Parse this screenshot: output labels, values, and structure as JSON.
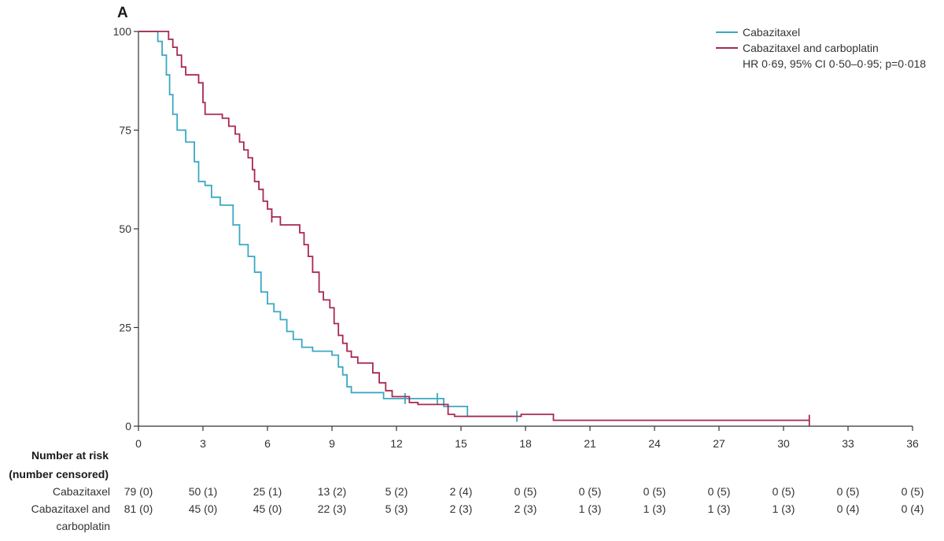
{
  "chart_data": {
    "type": "line",
    "subtype": "kaplan-meier",
    "title": "A",
    "xlabel": "",
    "ylabel": "",
    "xlim": [
      0,
      36
    ],
    "ylim": [
      0,
      100
    ],
    "x_ticks": [
      0,
      3,
      6,
      9,
      12,
      15,
      18,
      21,
      24,
      27,
      30,
      33,
      36
    ],
    "y_ticks": [
      0,
      25,
      50,
      75,
      100
    ],
    "grid": false,
    "legend_position": "top-right",
    "annotation": "HR 0·69, 95% CI 0·50–0·95; p=0·018",
    "series": [
      {
        "name": "Cabazitaxel",
        "color": "#3aa8c4",
        "points": [
          [
            0,
            100
          ],
          [
            0.1,
            100
          ],
          [
            0.9,
            97.5
          ],
          [
            1.1,
            94
          ],
          [
            1.3,
            89
          ],
          [
            1.45,
            84
          ],
          [
            1.6,
            79
          ],
          [
            1.8,
            75
          ],
          [
            2.2,
            72
          ],
          [
            2.6,
            67
          ],
          [
            2.8,
            62
          ],
          [
            3.1,
            61
          ],
          [
            3.4,
            58
          ],
          [
            3.8,
            56
          ],
          [
            4.1,
            56
          ],
          [
            4.4,
            51
          ],
          [
            4.7,
            46
          ],
          [
            5.1,
            43
          ],
          [
            5.4,
            39
          ],
          [
            5.7,
            34
          ],
          [
            6.0,
            31
          ],
          [
            6.3,
            29
          ],
          [
            6.6,
            27
          ],
          [
            6.9,
            24
          ],
          [
            7.2,
            22
          ],
          [
            7.6,
            20
          ],
          [
            8.1,
            19
          ],
          [
            8.5,
            19
          ],
          [
            9.0,
            18
          ],
          [
            9.3,
            15
          ],
          [
            9.5,
            13
          ],
          [
            9.7,
            10
          ],
          [
            9.9,
            8.5
          ],
          [
            10.8,
            8.5
          ],
          [
            11.4,
            7
          ],
          [
            12.4,
            7
          ],
          [
            13.9,
            7
          ],
          [
            14.2,
            5
          ],
          [
            15.3,
            2.5
          ],
          [
            16.6,
            2.5
          ],
          [
            17.6,
            2.5
          ]
        ],
        "censored": [
          [
            12.4,
            7
          ],
          [
            13.9,
            7
          ],
          [
            17.6,
            2.5
          ]
        ]
      },
      {
        "name": "Cabazitaxel and carboplatin",
        "color": "#a8284e",
        "points": [
          [
            0,
            100
          ],
          [
            1.1,
            100
          ],
          [
            1.4,
            98
          ],
          [
            1.6,
            96
          ],
          [
            1.8,
            94
          ],
          [
            2.0,
            91
          ],
          [
            2.2,
            89
          ],
          [
            2.7,
            89
          ],
          [
            2.8,
            87
          ],
          [
            3.0,
            82
          ],
          [
            3.1,
            79
          ],
          [
            3.6,
            79
          ],
          [
            3.9,
            78
          ],
          [
            4.2,
            76
          ],
          [
            4.5,
            74
          ],
          [
            4.7,
            72
          ],
          [
            4.9,
            70
          ],
          [
            5.1,
            68
          ],
          [
            5.3,
            65
          ],
          [
            5.4,
            62
          ],
          [
            5.6,
            60
          ],
          [
            5.8,
            57
          ],
          [
            6.0,
            55
          ],
          [
            6.2,
            53
          ],
          [
            6.6,
            51
          ],
          [
            7.1,
            51
          ],
          [
            7.5,
            49
          ],
          [
            7.7,
            46
          ],
          [
            7.9,
            43
          ],
          [
            8.1,
            39
          ],
          [
            8.4,
            34
          ],
          [
            8.6,
            32
          ],
          [
            8.9,
            30
          ],
          [
            9.1,
            26
          ],
          [
            9.3,
            23
          ],
          [
            9.5,
            21
          ],
          [
            9.7,
            19
          ],
          [
            9.9,
            17.5
          ],
          [
            10.2,
            16
          ],
          [
            10.7,
            16
          ],
          [
            10.9,
            13.5
          ],
          [
            11.2,
            11
          ],
          [
            11.5,
            9
          ],
          [
            11.8,
            7.5
          ],
          [
            12.0,
            7.5
          ],
          [
            12.6,
            6
          ],
          [
            13.0,
            5.5
          ],
          [
            14.0,
            5.5
          ],
          [
            14.4,
            3
          ],
          [
            14.7,
            2.5
          ],
          [
            17.6,
            2.5
          ],
          [
            17.8,
            3
          ],
          [
            19.2,
            3
          ],
          [
            19.3,
            1.5
          ],
          [
            31.2,
            1.5
          ]
        ],
        "censored": [
          [
            6.2,
            53
          ],
          [
            31.2,
            1.5
          ]
        ]
      }
    ],
    "risk_table": {
      "header_line1": "Number at risk",
      "header_line2": "(number censored)",
      "rows": [
        {
          "label_line1": "Cabazitaxel",
          "label_line2": "",
          "values": [
            "79 (0)",
            "50 (1)",
            "25 (1)",
            "13 (2)",
            "5 (2)",
            "2 (4)",
            "0 (5)",
            "0 (5)",
            "0 (5)",
            "0 (5)",
            "0 (5)",
            "0 (5)",
            "0 (5)"
          ]
        },
        {
          "label_line1": "Cabazitaxel and",
          "label_line2": "carboplatin",
          "values": [
            "81 (0)",
            "45 (0)",
            "45 (0)",
            "22 (3)",
            "5 (3)",
            "2 (3)",
            "2 (3)",
            "1 (3)",
            "1 (3)",
            "1 (3)",
            "1 (3)",
            "0 (4)",
            "0 (4)"
          ]
        }
      ]
    }
  }
}
